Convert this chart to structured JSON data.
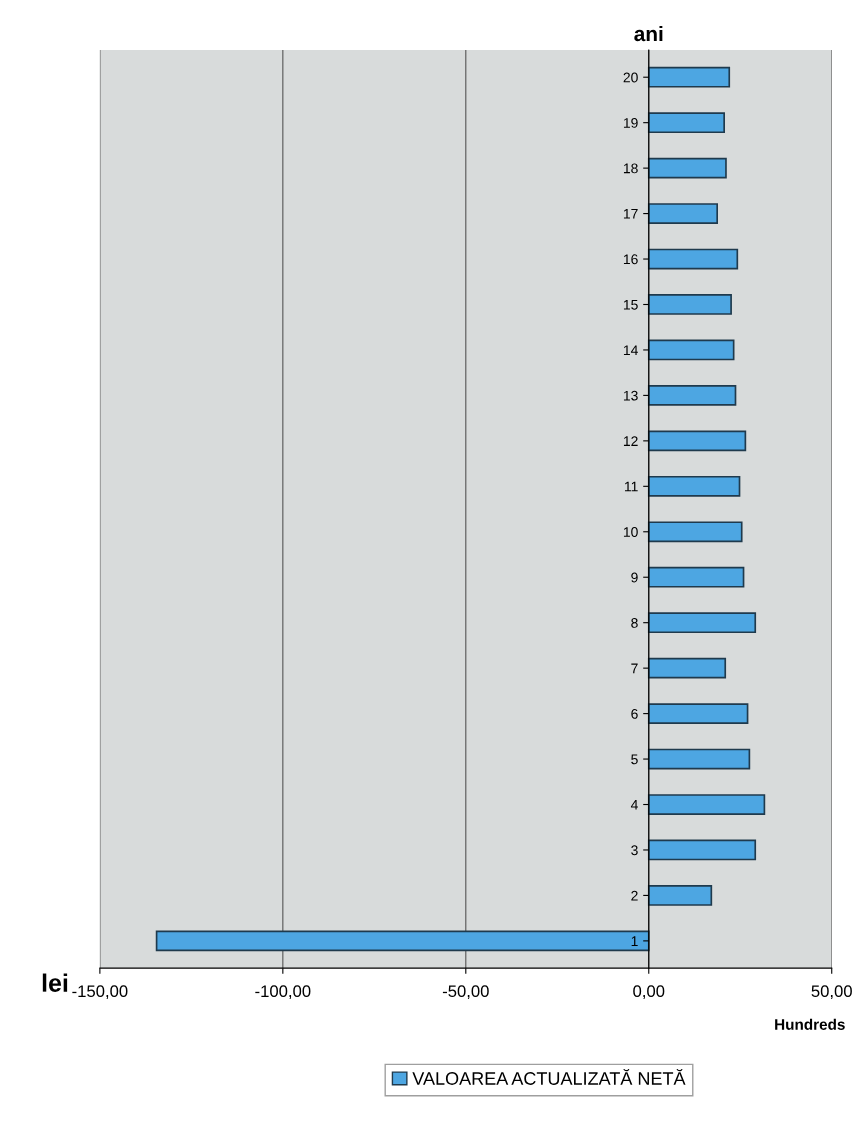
{
  "chart_data": {
    "type": "bar",
    "orientation": "horizontal",
    "xlabel": "Hundreds",
    "ylabel": "ani",
    "annotations": [
      "lei"
    ],
    "categories": [
      "20",
      "19",
      "18",
      "17",
      "16",
      "15",
      "14",
      "13",
      "12",
      "11",
      "10",
      "9",
      "8",
      "7",
      "6",
      "5",
      "4",
      "3",
      "2",
      "1"
    ],
    "series": [
      {
        "name": "VALOAREA ACTUALIZATĂ NETĂ",
        "color": "#4da6e2",
        "values": [
          22.0,
          20.6,
          21.1,
          18.7,
          24.2,
          22.5,
          23.2,
          23.7,
          26.4,
          24.8,
          25.4,
          25.9,
          29.1,
          20.9,
          27.0,
          27.5,
          31.6,
          29.1,
          17.1,
          -134.5
        ]
      }
    ],
    "xlim": [
      -150,
      50
    ],
    "xticks": [
      {
        "value": -150,
        "label": "-150,00"
      },
      {
        "value": -100,
        "label": "-100,00"
      },
      {
        "value": -50,
        "label": "-50,00"
      },
      {
        "value": 0,
        "label": "0,00"
      },
      {
        "value": 50,
        "label": "50,00"
      }
    ],
    "grid": "x",
    "legend": "bottom"
  }
}
